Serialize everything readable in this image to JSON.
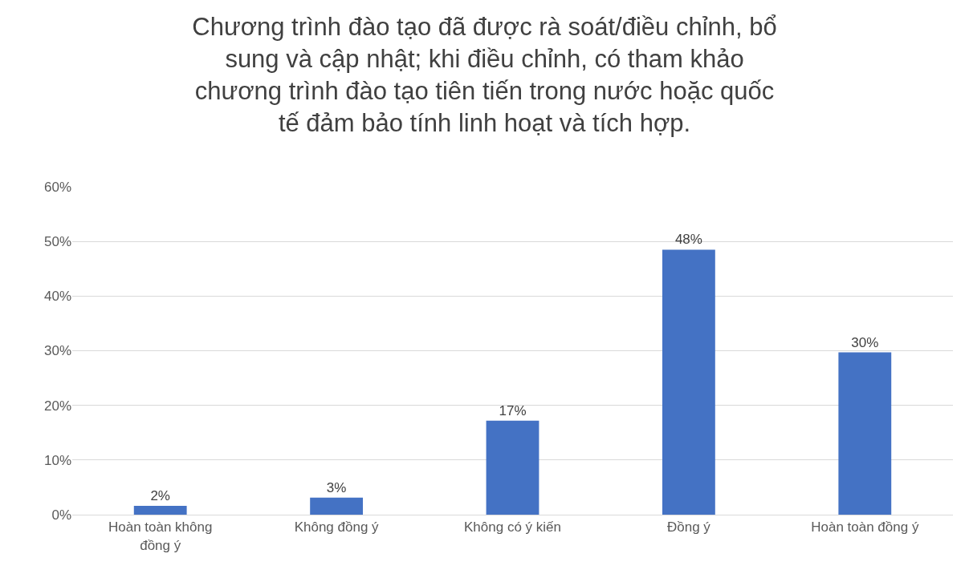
{
  "chart_data": {
    "type": "bar",
    "title": "Chương trình đào tạo đã được rà soát/điều chỉnh, bổ sung và cập nhật; khi điều chỉnh, có tham khảo chương trình đào tạo tiên tiến trong nước hoặc quốc tế đảm bảo tính linh hoạt và tích hợp.",
    "categories": [
      "Hoàn toàn không đồng ý",
      "Không đồng ý",
      "Không có ý kiến",
      "Đồng ý",
      "Hoàn toàn đồng ý"
    ],
    "values": [
      1.6,
      3.1,
      17.2,
      48.5,
      29.7
    ],
    "value_labels": [
      "2%",
      "3%",
      "17%",
      "48%",
      "30%"
    ],
    "color": "#4472c4",
    "ylim": [
      0,
      60
    ],
    "yticks": [
      {
        "value": 0,
        "label": "0%"
      },
      {
        "value": 10,
        "label": "10%"
      },
      {
        "value": 20,
        "label": "20%"
      },
      {
        "value": 30,
        "label": "30%"
      },
      {
        "value": 40,
        "label": "40%"
      },
      {
        "value": 50,
        "label": "50%"
      },
      {
        "value": 60,
        "label": "60%"
      }
    ],
    "grid": "y"
  }
}
